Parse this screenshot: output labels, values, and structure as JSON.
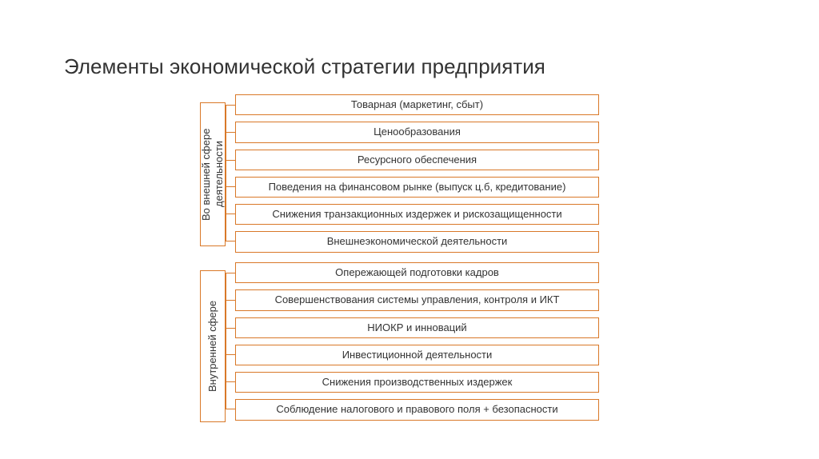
{
  "title": "Элементы экономической стратегии предприятия",
  "colors": {
    "border": "#d97828",
    "text": "#333333",
    "background": "#ffffff"
  },
  "layout": {
    "title_fontsize": 26,
    "item_fontsize": 13,
    "label_fontsize": 13,
    "item_width": 455,
    "item_gap": 8,
    "connector_width": 14,
    "label_offset": 30
  },
  "groups": [
    {
      "key": "external",
      "label": "Во внешней сфере\nдеятельности",
      "items": [
        "Товарная (маркетинг, сбыт)",
        "Ценообразования",
        "Ресурсного обеспечения",
        "Поведения на финансовом рынке (выпуск ц.б, кредитование)",
        "Снижения транзакционных издержек и рискозащищенности",
        "Внешнеэкономической деятельности"
      ]
    },
    {
      "key": "internal",
      "label": "Внутренней сфере",
      "items": [
        "Опережающей подготовки кадров",
        "Совершенствования системы управления, контроля и ИКТ",
        "НИОКР и инноваций",
        "Инвестиционной деятельности",
        "Снижения производственных издержек",
        "Соблюдение налогового  и правового поля + безопасности"
      ]
    }
  ]
}
